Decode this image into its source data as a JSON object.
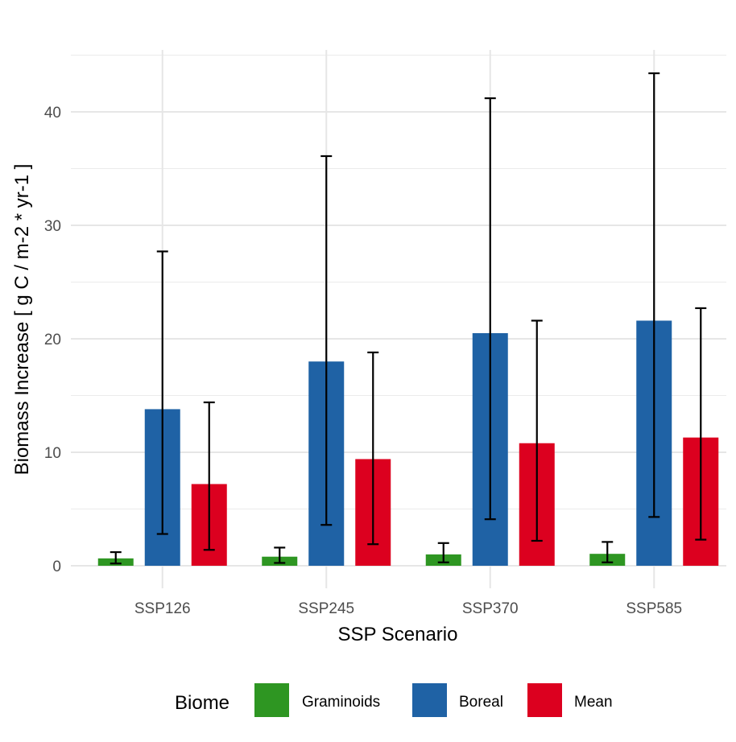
{
  "chart_data": {
    "type": "bar",
    "title": "",
    "xlabel": "SSP Scenario",
    "ylabel": "Biomass Increase [ g C / m-2 * yr-1 ]",
    "categories": [
      "SSP126",
      "SSP245",
      "SSP370",
      "SSP585"
    ],
    "ylim": [
      -2,
      46
    ],
    "yticks": [
      0,
      10,
      20,
      30,
      40
    ],
    "grid": true,
    "legend": {
      "title": "Biome",
      "position": "bottom"
    },
    "series": [
      {
        "name": "Graminoids",
        "color": "#2e9622",
        "values": [
          0.65,
          0.8,
          1.0,
          1.05
        ],
        "error_low": [
          0.2,
          0.25,
          0.3,
          0.3
        ],
        "error_high": [
          1.2,
          1.6,
          2.0,
          2.1
        ]
      },
      {
        "name": "Boreal",
        "color": "#1f62a5",
        "values": [
          13.8,
          18.0,
          20.5,
          21.6
        ],
        "error_low": [
          2.8,
          3.6,
          4.1,
          4.3
        ],
        "error_high": [
          27.7,
          36.1,
          41.2,
          43.4
        ]
      },
      {
        "name": "Mean",
        "color": "#dc001f",
        "values": [
          7.2,
          9.4,
          10.8,
          11.3
        ],
        "error_low": [
          1.4,
          1.9,
          2.2,
          2.3
        ],
        "error_high": [
          14.4,
          18.8,
          21.6,
          22.7
        ]
      }
    ]
  }
}
